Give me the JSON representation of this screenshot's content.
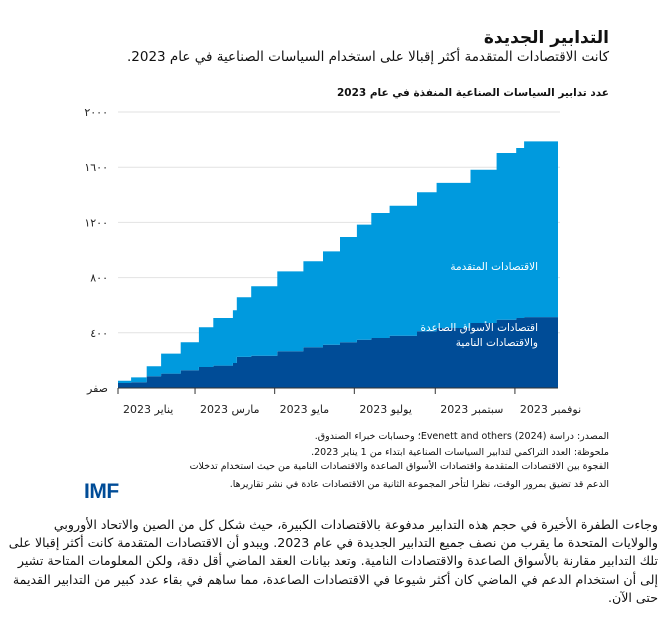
{
  "header": {
    "title": "التدابير الجديدة",
    "subtitle": "كانت الاقتصادات المتقدمة أكثر إقبالا على استخدام السياسات الصناعية في عام 2023."
  },
  "chart_data": {
    "type": "area",
    "stacked": true,
    "title": "عدد تدابير السياسات الصناعية المنفذة في عام 2023",
    "xlabel": "",
    "ylabel": "",
    "ylim": [
      0,
      2000
    ],
    "yticks": [
      0,
      400,
      800,
      1200,
      1600,
      2000
    ],
    "ytick_labels": [
      "صفر",
      "٤٠٠",
      "٨٠٠",
      "١٢٠٠",
      "١٦٠٠",
      "٢٠٠٠"
    ],
    "xticks": [
      "2023-01-01",
      "2023-03-01",
      "2023-05-01",
      "2023-07-01",
      "2023-09-01",
      "2023-11-01"
    ],
    "xtick_labels": [
      "يناير 2023",
      "مارس 2023",
      "مايو 2023",
      "يوليو 2023",
      "سبتمبر 2023",
      "نوفمبر 2023"
    ],
    "xlim": [
      "2023-01-01",
      "2023-12-04"
    ],
    "grid": true,
    "x": [
      "2023-01-01",
      "2023-01-11",
      "2023-01-23",
      "2023-02-03",
      "2023-02-18",
      "2023-03-04",
      "2023-03-15",
      "2023-03-30",
      "2023-04-02",
      "2023-04-13",
      "2023-05-03",
      "2023-05-23",
      "2023-06-07",
      "2023-06-20",
      "2023-07-03",
      "2023-07-14",
      "2023-07-28",
      "2023-08-18",
      "2023-09-02",
      "2023-09-28",
      "2023-10-18",
      "2023-11-02",
      "2023-11-08",
      "2023-12-04"
    ],
    "series": [
      {
        "name": "اقتصادات الأسواق الصاعدة والاقتصادات النامية",
        "color": "#004C97",
        "values": [
          36,
          41,
          85,
          104,
          128,
          152,
          162,
          181,
          225,
          234,
          266,
          295,
          314,
          331,
          350,
          362,
          379,
          411,
          435,
          471,
          495,
          507,
          514,
          527
        ]
      },
      {
        "name": "الاقتصادات المتقدمة",
        "color": "#009ADE",
        "values": [
          17,
          36,
          72,
          145,
          203,
          288,
          345,
          382,
          432,
          503,
          579,
          623,
          676,
          763,
          834,
          906,
          942,
          1007,
          1051,
          1111,
          1208,
          1232,
          1273,
          1304
        ]
      }
    ],
    "series_labels": {
      "emde_line1": "اقتصادات الأسواق الصاعدة",
      "emde_line2": "والاقتصادات النامية",
      "advanced": "الاقتصادات المتقدمة"
    }
  },
  "notes": [
    "المصدر: دراسة (2024) Evenett and others؛ وحسابات خبراء الصندوق.",
    "ملحوظة: العدد التراكمي لتدابير السياسات الصناعية ابتداء من 1 يناير 2023.",
    "الفجوة بين الاقتصادات المتقدمة واقتصادات الأسواق الصاعدة والاقتصادات النامية من حيث استخدام تدخلات",
    "الدعم قد تضيق بمرور الوقت، نظرا لتأخر المجموعة الثانية من الاقتصادات عادة في نشر تقاريرها."
  ],
  "logo": "IMF",
  "body": "وجاءت الطفرة الأخيرة في حجم هذه التدابير مدفوعة بالاقتصادات الكبيرة، حيث شكل كل من الصين والاتحاد الأوروبي والولايات المتحدة ما يقرب من نصف جميع التدابير الجديدة في عام 2023. ويبدو أن الاقتصادات المتقدمة كانت أكثر إقبالا على تلك التدابير مقارنة بالأسواق الصاعدة والاقتصادات النامية. وتعد بيانات العقد الماضي أقل دقة، ولكن المعلومات المتاحة تشير إلى أن استخدام الدعم في الماضي كان أكثر شيوعا في الاقتصادات الصاعدة، مما ساهم في بقاء عدد كبير من التدابير القديمة حتى الآن."
}
